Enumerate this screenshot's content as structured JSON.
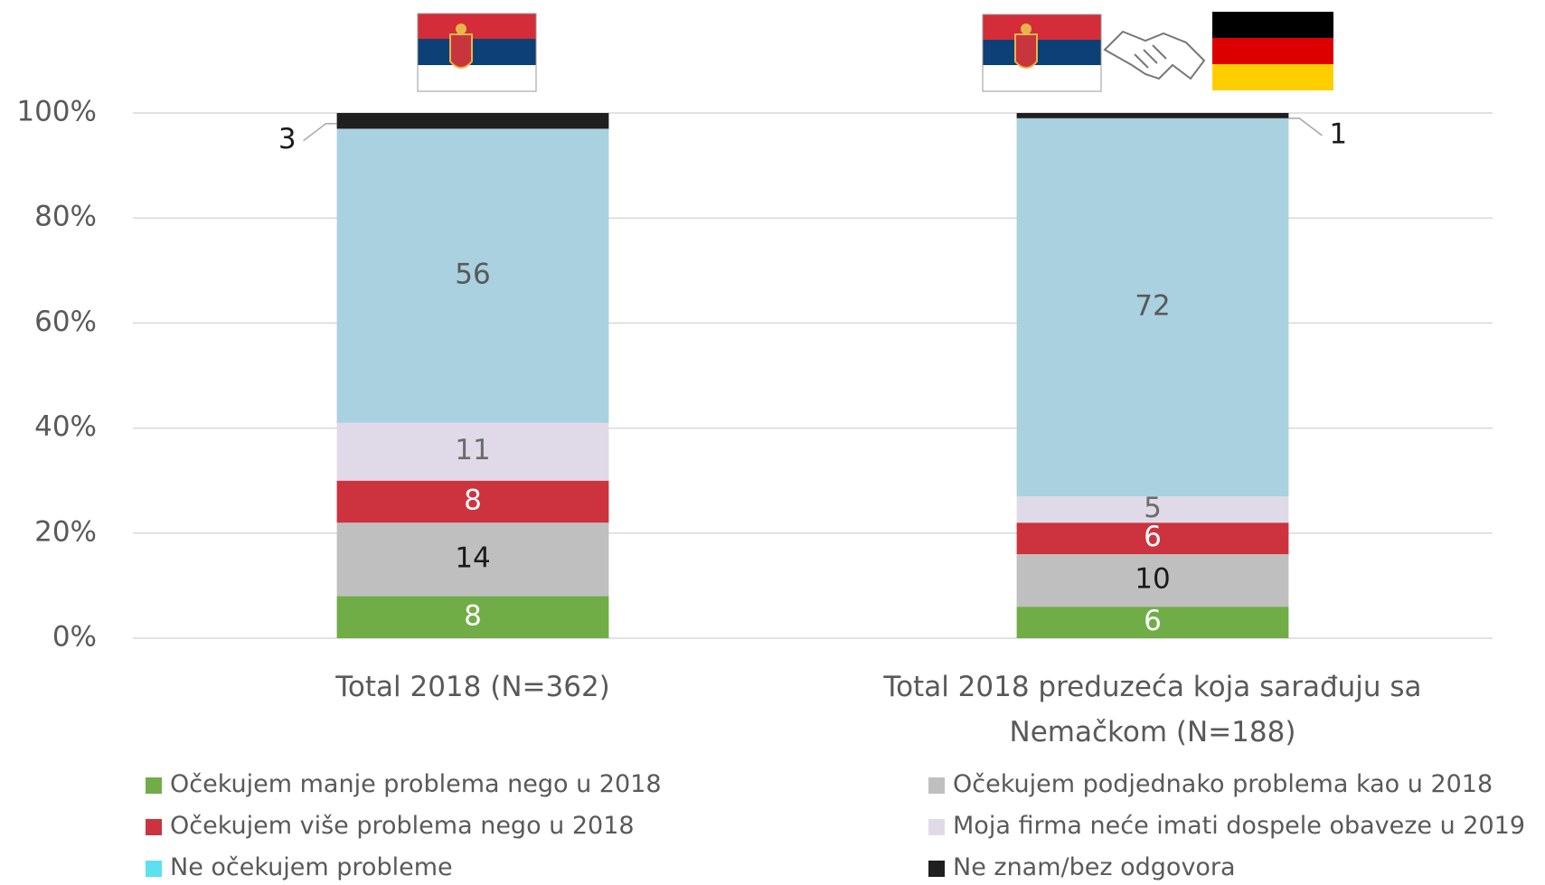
{
  "chart_data": {
    "type": "stacked_bar",
    "categories": [
      "Total 2018 (N=362)",
      "Total 2018 preduzeća koja sarađuju sa Nemačkom (N=188)"
    ],
    "series": [
      {
        "name": "Očekujem manje problema nego u 2018",
        "color": "#70ad47",
        "label_color": "#ffffff",
        "values": [
          8,
          6
        ]
      },
      {
        "name": "Očekujem podjednako problema kao u 2018",
        "color": "#bfbfbf",
        "label_color": "#1a1a1a",
        "values": [
          14,
          10
        ]
      },
      {
        "name": "Očekujem više problema nego u 2018",
        "color": "#cc333f",
        "label_color": "#ffffff",
        "values": [
          8,
          6
        ]
      },
      {
        "name": "Moja firma neće imati dospele obaveze u 2019",
        "color": "#e0dae8",
        "label_color": "#6b6b6b",
        "values": [
          11,
          5
        ]
      },
      {
        "name": "Ne očekujem probleme",
        "color": "#a9d1e0",
        "legend_color": "#5ce1f0",
        "label_color": "#595959",
        "values": [
          56,
          72
        ]
      },
      {
        "name": "Ne znam/bez odgovora",
        "color": "#1f1f1f",
        "label_color": "#1a1a1a",
        "values": [
          3,
          1
        ]
      }
    ],
    "ylim": [
      0,
      100
    ],
    "yticks": [
      {
        "value": 0,
        "label": "0%"
      },
      {
        "value": 20,
        "label": "20%"
      },
      {
        "value": 40,
        "label": "40%"
      },
      {
        "value": 60,
        "label": "60%"
      },
      {
        "value": 80,
        "label": "80%"
      },
      {
        "value": 100,
        "label": "100%"
      }
    ],
    "grid": true
  }
}
